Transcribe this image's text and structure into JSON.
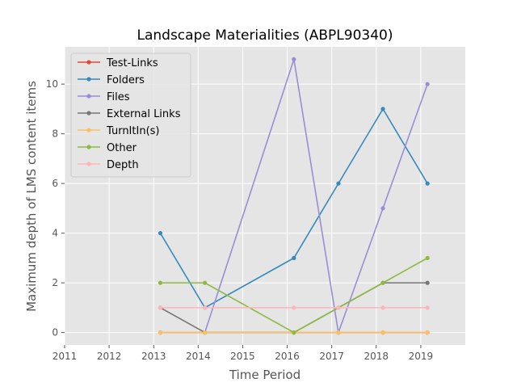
{
  "chart_data": {
    "type": "line",
    "title": "Landscape Materialities (ABPL90340)",
    "xlabel": "Time Period",
    "ylabel": "Maximum depth of LMS content items",
    "xlim": [
      2011,
      2020
    ],
    "ylim": [
      -0.5,
      11.5
    ],
    "xticks": [
      "2011",
      "2012",
      "2013",
      "2014",
      "2015",
      "2016",
      "2017",
      "2018",
      "2019"
    ],
    "yticks": [
      "0",
      "2",
      "4",
      "6",
      "8",
      "10"
    ],
    "grid": true,
    "legend_position": "upper-left",
    "x": [
      2013.15,
      2014.15,
      2016.15,
      2017.15,
      2018.15,
      2019.15
    ],
    "series": [
      {
        "name": "Test-Links",
        "color": "#E24A33",
        "values": [
          0,
          0,
          0,
          0,
          0,
          0
        ]
      },
      {
        "name": "Folders",
        "color": "#348ABD",
        "values": [
          4,
          1,
          3,
          6,
          9,
          6
        ]
      },
      {
        "name": "Files",
        "color": "#988ED5",
        "values": [
          null,
          0,
          11,
          0,
          5,
          10
        ]
      },
      {
        "name": "External Links",
        "color": "#777777",
        "values": [
          1,
          0,
          0,
          1,
          2,
          2
        ]
      },
      {
        "name": "TurnItIn(s)",
        "color": "#FBC15E",
        "values": [
          0,
          0,
          0,
          0,
          0,
          0
        ]
      },
      {
        "name": "Other",
        "color": "#8EBA42",
        "values": [
          2,
          2,
          0,
          1,
          2,
          3
        ]
      },
      {
        "name": "Depth",
        "color": "#FFB5B8",
        "values": [
          1,
          1,
          1,
          1,
          1,
          1
        ]
      }
    ]
  }
}
